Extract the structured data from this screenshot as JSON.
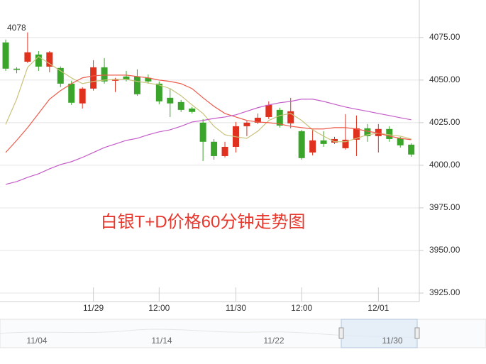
{
  "chart_data": {
    "type": "candlestick",
    "title": "白银T+D价格60分钟走势图",
    "title_color": "#e8372c",
    "annotation": "4078",
    "up_color": "#e0301e",
    "down_color": "#3aa52a",
    "grid": true,
    "ylim": [
      3920,
      4097
    ],
    "yticks": [
      {
        "value": 3925,
        "label": "3925.00"
      },
      {
        "value": 3950,
        "label": "3950.00"
      },
      {
        "value": 3975,
        "label": "3975.00"
      },
      {
        "value": 4000,
        "label": "4000.00"
      },
      {
        "value": 4025,
        "label": "4025.00"
      },
      {
        "value": 4050,
        "label": "4050.00"
      },
      {
        "value": 4075,
        "label": "4075.00"
      }
    ],
    "categories": [
      null,
      null,
      null,
      null,
      null,
      null,
      null,
      null,
      "11/29",
      null,
      null,
      null,
      null,
      null,
      "12:00",
      null,
      null,
      null,
      null,
      null,
      null,
      "11/30",
      null,
      null,
      null,
      null,
      null,
      "12:00",
      null,
      null,
      null,
      null,
      null,
      null,
      "12/01",
      null,
      null,
      null
    ],
    "open": [
      4072.1,
      4056.7,
      4060.8,
      4065,
      4057.9,
      4057.1,
      4047.9,
      4036.3,
      4045,
      4057.5,
      4049.6,
      4052.1,
      4052.1,
      4051.3,
      4047.9,
      4039.6,
      4037.1,
      4033.3,
      4025,
      4013.8,
      4005.4,
      4010.8,
      4022.9,
      4025,
      4028.3,
      4032.5,
      4024.6,
      4020,
      4007.5,
      4014.6,
      4013.3,
      4010,
      4015,
      4021.7,
      4017.1,
      4021.3,
      4015.8,
      4012.1
    ],
    "high": [
      4073.8,
      4057.5,
      4078,
      4067,
      4067,
      4058,
      4049.6,
      4045.8,
      4061.7,
      4062.9,
      4051.3,
      4055.4,
      4056.3,
      4053.3,
      4049.2,
      4045,
      4038.3,
      4034.2,
      4027.1,
      4015.4,
      4013.8,
      4025.4,
      4025.8,
      4030.4,
      4037.5,
      4033.8,
      4039.6,
      4020.8,
      4021.3,
      4020,
      4016.7,
      4030,
      4029.2,
      4024.2,
      4024.2,
      4022.9,
      4016.7,
      4012.9
    ],
    "low": [
      4055.4,
      4054,
      4060,
      4055.4,
      4054.6,
      4045.8,
      4035.4,
      4033.3,
      4043.8,
      4047.9,
      4043,
      4049.2,
      4040.8,
      4047.9,
      4035.8,
      4028.3,
      4031.3,
      4030.4,
      4002.5,
      4003.3,
      4004.6,
      4007.5,
      4017.1,
      4024.2,
      4027.1,
      4022.1,
      4021.7,
      4003.3,
      4005.8,
      4010.8,
      4012.5,
      4009.2,
      4005.4,
      4013.8,
      4007.5,
      4013.8,
      4010.4,
      4005
    ],
    "close": [
      4056.7,
      4056,
      4066.3,
      4057.9,
      4066.3,
      4047.9,
      4036.7,
      4045,
      4057.5,
      4049.2,
      4050.4,
      4050.4,
      4041.7,
      4049.2,
      4037.5,
      4036.3,
      4032.5,
      4031.3,
      4013.8,
      4005.4,
      4010.8,
      4022.9,
      4025,
      4027.9,
      4035.4,
      4023.3,
      4031.7,
      4004.2,
      4014.6,
      4012.5,
      4015.4,
      4015,
      4021.7,
      4017.1,
      4021.3,
      4015.4,
      4011.7,
      4006.3
    ],
    "lines": [
      {
        "color": "#c9c27a",
        "values": [
          4024,
          4038.8,
          4057.5,
          4063.8,
          4059.6,
          4055.4,
          4051.3,
          4047.9,
          4049.2,
          4050,
          4050.4,
          4050.4,
          4049.2,
          4048.3,
          4047.1,
          4045,
          4040.8,
          4035.4,
          4030.4,
          4022.9,
          4017.9,
          4016.7,
          4015.8,
          4020,
          4026.3,
          4029.2,
          4030.4,
          4026.3,
          4020.8,
          4017.1,
          4013.8,
          4013.8,
          4015.8,
          4017.9,
          4018.8,
          4017.9,
          4017.1,
          4015.4
        ]
      },
      {
        "color": "#ee5a4a",
        "values": [
          4007.5,
          4014.6,
          4022.1,
          4030.4,
          4038.8,
          4043.8,
          4047.9,
          4051.3,
          4052.5,
          4052.9,
          4052.9,
          4052.9,
          4052.1,
          4051.3,
          4050,
          4049.2,
          4047.9,
          4045,
          4039.6,
          4034.6,
          4030.4,
          4028.3,
          4026.3,
          4025.4,
          4025,
          4024.2,
          4022.9,
          4022.1,
          4021.3,
          4021.3,
          4022.1,
          4022.1,
          4021.3,
          4020,
          4018.8,
          4017.1,
          4015.8,
          4015
        ]
      },
      {
        "color": "#c45cc8",
        "values": [
          3988.8,
          3990.4,
          3992.9,
          3995,
          3997.9,
          4000.4,
          4002.1,
          4004.6,
          4007.5,
          4010.4,
          4012.5,
          4014.6,
          4015.8,
          4017.9,
          4019.6,
          4020.8,
          4022.9,
          4025.4,
          4026.3,
          4027.5,
          4028.3,
          4029.6,
          4031.7,
          4033.8,
          4035.4,
          4036.7,
          4037.5,
          4038.8,
          4038.8,
          4037.5,
          4035.8,
          4034.2,
          4032.9,
          4031.7,
          4030.4,
          4029.2,
          4027.9,
          4026.7
        ]
      }
    ],
    "navigator_labels": [
      "11/04",
      "11/14",
      "11/22",
      "11/30"
    ]
  }
}
